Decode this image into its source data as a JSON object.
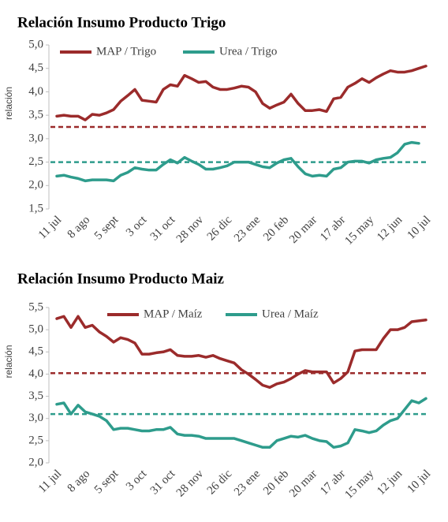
{
  "chart_data": [
    {
      "type": "line",
      "title": "Relación Insumo Producto Trigo",
      "ylabel": "relación",
      "categories": [
        "11 jul",
        null,
        null,
        null,
        "8 ago",
        null,
        null,
        null,
        "5 sept",
        null,
        null,
        null,
        "3 oct",
        null,
        null,
        null,
        "31 oct",
        null,
        null,
        null,
        "28 nov",
        null,
        null,
        null,
        "26 dic",
        null,
        null,
        null,
        "23 ene",
        null,
        null,
        null,
        "20 feb",
        null,
        null,
        null,
        "20 mar",
        null,
        null,
        null,
        "17 abr",
        null,
        null,
        null,
        "15 may",
        null,
        null,
        null,
        "12 jun",
        null,
        null,
        null,
        "10 jul"
      ],
      "series": [
        {
          "name": "MAP / Trigo",
          "color": "#9b2b2b",
          "values": [
            3.48,
            3.5,
            3.48,
            3.48,
            3.4,
            3.52,
            3.5,
            3.55,
            3.62,
            3.8,
            3.92,
            4.05,
            3.82,
            3.8,
            3.78,
            4.05,
            4.15,
            4.12,
            4.35,
            4.28,
            4.2,
            4.22,
            4.1,
            4.05,
            4.05,
            4.08,
            4.12,
            4.1,
            4.0,
            3.75,
            3.65,
            3.72,
            3.78,
            3.95,
            3.75,
            3.6,
            3.6,
            3.62,
            3.58,
            3.85,
            3.88,
            4.1,
            4.18,
            4.28,
            4.2,
            4.3,
            4.38,
            4.45,
            4.42,
            4.42,
            4.45,
            4.5,
            4.55
          ]
        },
        {
          "name": "Urea / Trigo",
          "color": "#2e9c8c",
          "values": [
            2.2,
            2.22,
            2.18,
            2.15,
            2.1,
            2.12,
            2.12,
            2.12,
            2.1,
            2.22,
            2.28,
            2.38,
            2.35,
            2.33,
            2.33,
            2.45,
            2.55,
            2.48,
            2.6,
            2.52,
            2.45,
            2.35,
            2.35,
            2.38,
            2.42,
            2.5,
            2.5,
            2.5,
            2.45,
            2.4,
            2.38,
            2.48,
            2.55,
            2.58,
            2.4,
            2.25,
            2.2,
            2.22,
            2.2,
            2.35,
            2.38,
            2.5,
            2.52,
            2.52,
            2.48,
            2.55,
            2.58,
            2.6,
            2.7,
            2.88,
            2.92,
            2.9,
            null
          ]
        }
      ],
      "reference_lines": [
        {
          "value": 3.25,
          "color": "#9b2b2b"
        },
        {
          "value": 2.5,
          "color": "#2e9c8c"
        }
      ],
      "ylim": [
        1.5,
        5.0
      ],
      "yticks": [
        {
          "value": 1.5,
          "label": "1,5"
        },
        {
          "value": 2.0,
          "label": "2,0"
        },
        {
          "value": 2.5,
          "label": "2,5"
        },
        {
          "value": 3.0,
          "label": "3,0"
        },
        {
          "value": 3.5,
          "label": "3,5"
        },
        {
          "value": 4.0,
          "label": "4,0"
        },
        {
          "value": 4.5,
          "label": "4,5"
        },
        {
          "value": 5.0,
          "label": "5,0"
        }
      ],
      "legend": "top"
    },
    {
      "type": "line",
      "title": "Relación Insumo Producto Maiz",
      "ylabel": "relación",
      "categories": [
        "11 jul",
        null,
        null,
        null,
        "8 ago",
        null,
        null,
        null,
        "5 sept",
        null,
        null,
        null,
        "3 oct",
        null,
        null,
        null,
        "31 oct",
        null,
        null,
        null,
        "28 nov",
        null,
        null,
        null,
        "26 dic",
        null,
        null,
        null,
        "23 ene",
        null,
        null,
        null,
        "20 feb",
        null,
        null,
        null,
        "20 mar",
        null,
        null,
        null,
        "17 abr",
        null,
        null,
        null,
        "15 may",
        null,
        null,
        null,
        "12 jun",
        null,
        null,
        null,
        "10 jul"
      ],
      "series": [
        {
          "name": "MAP / Maíz",
          "color": "#9b2b2b",
          "values": [
            5.25,
            5.3,
            5.05,
            5.3,
            5.05,
            5.1,
            4.95,
            4.85,
            4.72,
            4.82,
            4.78,
            4.7,
            4.45,
            4.45,
            4.48,
            4.5,
            4.55,
            4.42,
            4.4,
            4.4,
            4.42,
            4.38,
            4.42,
            4.35,
            4.3,
            4.25,
            4.1,
            4.0,
            3.88,
            3.75,
            3.7,
            3.78,
            3.82,
            3.9,
            4.0,
            4.08,
            4.05,
            4.05,
            4.05,
            3.8,
            3.9,
            4.05,
            4.52,
            4.55,
            4.55,
            4.55,
            4.8,
            5.0,
            5.0,
            5.05,
            5.18,
            5.2,
            5.22
          ]
        },
        {
          "name": "Urea / Maíz",
          "color": "#2e9c8c",
          "values": [
            3.32,
            3.35,
            3.1,
            3.3,
            3.15,
            3.1,
            3.05,
            2.95,
            2.75,
            2.78,
            2.78,
            2.75,
            2.72,
            2.72,
            2.75,
            2.75,
            2.8,
            2.65,
            2.62,
            2.62,
            2.6,
            2.55,
            2.55,
            2.55,
            2.55,
            2.55,
            2.5,
            2.45,
            2.4,
            2.35,
            2.35,
            2.5,
            2.55,
            2.6,
            2.58,
            2.62,
            2.55,
            2.5,
            2.48,
            2.35,
            2.38,
            2.45,
            2.75,
            2.72,
            2.68,
            2.72,
            2.85,
            2.95,
            3.0,
            3.2,
            3.4,
            3.35,
            3.45
          ]
        }
      ],
      "reference_lines": [
        {
          "value": 4.02,
          "color": "#9b2b2b"
        },
        {
          "value": 3.1,
          "color": "#2e9c8c"
        }
      ],
      "ylim": [
        2.0,
        5.5
      ],
      "yticks": [
        {
          "value": 2.0,
          "label": "2,0"
        },
        {
          "value": 2.5,
          "label": "2,5"
        },
        {
          "value": 3.0,
          "label": "3,0"
        },
        {
          "value": 3.5,
          "label": "3,5"
        },
        {
          "value": 4.0,
          "label": "4,0"
        },
        {
          "value": 4.5,
          "label": "4,5"
        },
        {
          "value": 5.0,
          "label": "5,0"
        },
        {
          "value": 5.5,
          "label": "5,5"
        }
      ],
      "legend": "top"
    }
  ]
}
